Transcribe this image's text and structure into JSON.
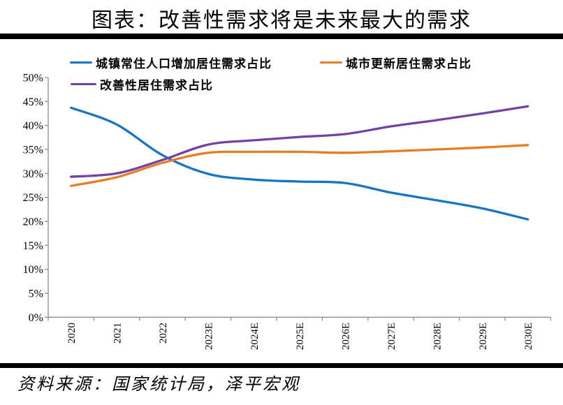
{
  "title": "图表：改善性需求将是未来最大的需求",
  "source": "资料来源：国家统计局，泽平宏观",
  "colors": {
    "divider_bar": "#000000",
    "axis": "#8c8c8c",
    "text": "#000000"
  },
  "chart_data": {
    "type": "line",
    "title": "图表：改善性需求将是未来最大的需求",
    "categories": [
      "2020",
      "2021",
      "2022",
      "2023E",
      "2024E",
      "2025E",
      "2026E",
      "2027E",
      "2028E",
      "2029E",
      "2030E"
    ],
    "series": [
      {
        "name": "城镇常住人口增加居住需求占比",
        "color": "#1776c2",
        "values": [
          43.7,
          40.2,
          33.8,
          29.9,
          28.7,
          28.3,
          28.0,
          26.0,
          24.4,
          22.7,
          20.4
        ]
      },
      {
        "name": "城市更新居住需求占比",
        "color": "#e87d22",
        "values": [
          27.4,
          29.2,
          32.2,
          34.3,
          34.5,
          34.5,
          34.3,
          34.6,
          35.0,
          35.4,
          35.9
        ]
      },
      {
        "name": "改善性居住需求占比",
        "color": "#7442a5",
        "values": [
          29.3,
          30.0,
          32.8,
          36.0,
          36.9,
          37.6,
          38.2,
          39.8,
          41.1,
          42.5,
          44.0
        ]
      }
    ],
    "ylabel": "",
    "xlabel": "",
    "ylim": [
      0,
      50
    ],
    "ytick_step": 5,
    "ytick_labels": [
      "0%",
      "5%",
      "10%",
      "15%",
      "20%",
      "25%",
      "30%",
      "35%",
      "40%",
      "45%",
      "50%"
    ],
    "grid": false,
    "legend_position": "top-left",
    "x_label_rotation": -90
  }
}
